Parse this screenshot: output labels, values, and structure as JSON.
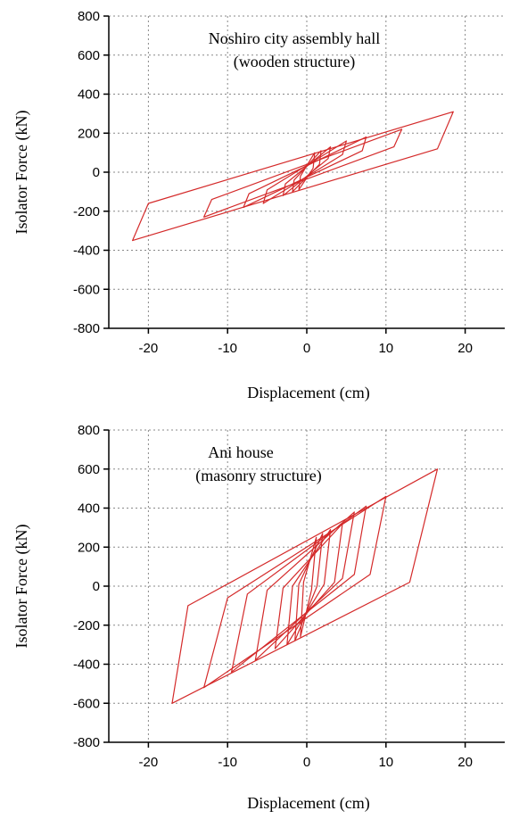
{
  "chart_data": [
    {
      "type": "line",
      "annotation_lines": [
        "Noshiro city assembly hall",
        "(wooden structure)"
      ],
      "xlabel": "Displacement (cm)",
      "ylabel": "Isolator Force (kN)",
      "xlim": [
        -25,
        25
      ],
      "ylim": [
        -800,
        800
      ],
      "x_ticks": [
        -20,
        -10,
        0,
        10,
        20
      ],
      "y_ticks": [
        800,
        600,
        400,
        200,
        0,
        -200,
        -400,
        -600,
        -800
      ],
      "grid": true,
      "series_color": "#d42a2a",
      "loops": [
        {
          "x": [
            -22,
            -20,
            18.5,
            16.5
          ],
          "y": [
            -350,
            -160,
            310,
            120
          ]
        },
        {
          "x": [
            -13,
            -12,
            12,
            11
          ],
          "y": [
            -230,
            -140,
            220,
            130
          ]
        },
        {
          "x": [
            -8,
            -7.3,
            7.5,
            7
          ],
          "y": [
            -180,
            -110,
            180,
            110
          ]
        },
        {
          "x": [
            -5.5,
            -5,
            5,
            4.5
          ],
          "y": [
            -160,
            -90,
            160,
            90
          ]
        },
        {
          "x": [
            -3,
            -2.7,
            3,
            2.7
          ],
          "y": [
            -120,
            -60,
            130,
            70
          ]
        },
        {
          "x": [
            -1.8,
            -1.6,
            1.8,
            1.6
          ],
          "y": [
            -100,
            -40,
            110,
            40
          ]
        },
        {
          "x": [
            -1,
            -0.8,
            1,
            0.8
          ],
          "y": [
            -90,
            -20,
            100,
            20
          ]
        }
      ]
    },
    {
      "type": "line",
      "annotation_lines": [
        "Ani house",
        "(masonry structure)"
      ],
      "xlabel": "Displacement (cm)",
      "ylabel": "Isolator Force (kN)",
      "xlim": [
        -25,
        25
      ],
      "ylim": [
        -800,
        800
      ],
      "x_ticks": [
        -20,
        -10,
        0,
        10,
        20
      ],
      "y_ticks": [
        800,
        600,
        400,
        200,
        0,
        -200,
        -400,
        -600,
        -800
      ],
      "grid": true,
      "series_color": "#d42a2a",
      "loops": [
        {
          "x": [
            -17,
            -15,
            16.5,
            13
          ],
          "y": [
            -600,
            -100,
            600,
            20
          ]
        },
        {
          "x": [
            -13,
            -10,
            10,
            8
          ],
          "y": [
            -520,
            -60,
            460,
            60
          ]
        },
        {
          "x": [
            -9.5,
            -7.5,
            7.5,
            6
          ],
          "y": [
            -440,
            -40,
            410,
            60
          ]
        },
        {
          "x": [
            -6.5,
            -5,
            6,
            4.5
          ],
          "y": [
            -380,
            -20,
            380,
            40
          ]
        },
        {
          "x": [
            -4,
            -3,
            4.5,
            3.5
          ],
          "y": [
            -320,
            -10,
            320,
            20
          ]
        },
        {
          "x": [
            -2.5,
            -1.8,
            3,
            2.2
          ],
          "y": [
            -300,
            0,
            290,
            10
          ]
        },
        {
          "x": [
            -1.5,
            -1,
            2,
            1.3
          ],
          "y": [
            -280,
            10,
            270,
            0
          ]
        },
        {
          "x": [
            -0.8,
            -0.4,
            1.2,
            0.6
          ],
          "y": [
            -260,
            20,
            250,
            -20
          ]
        }
      ]
    }
  ]
}
